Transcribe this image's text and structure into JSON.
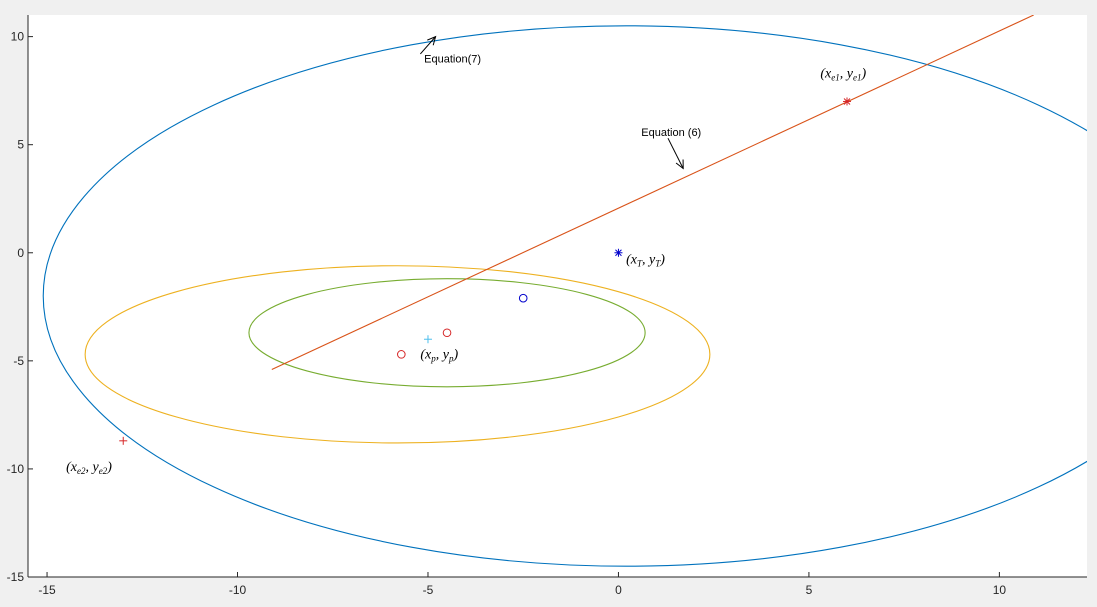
{
  "chart_data": {
    "type": "line",
    "xlim": [
      -15.5,
      12.3
    ],
    "ylim": [
      -15,
      11
    ],
    "x_ticks": [
      -15,
      -10,
      -5,
      0,
      5,
      10
    ],
    "y_ticks": [
      10,
      5,
      0,
      -5,
      -10,
      -15
    ],
    "grid": false,
    "colors": {
      "big_ellipse": "#0072BD",
      "line": "#D95319",
      "yellow_ellipse": "#EDB120",
      "green_ellipse": "#77AC30",
      "red_marker": "#D62728",
      "blue_marker": "#0000CC",
      "cyan_marker": "#4DBEEE"
    },
    "ellipses": [
      {
        "name": "big",
        "cx": 0.2,
        "cy": -2.0,
        "rx": 15.3,
        "ry": 12.5,
        "color_key": "big_ellipse"
      },
      {
        "name": "yellow",
        "cx": -5.8,
        "cy": -4.7,
        "rx": 8.2,
        "ry": 4.1,
        "color_key": "yellow_ellipse"
      },
      {
        "name": "green",
        "cx": -4.5,
        "cy": -3.7,
        "rx": 5.2,
        "ry": 2.5,
        "color_key": "green_ellipse"
      }
    ],
    "line": {
      "x": [
        -9.1,
        10.9
      ],
      "y": [
        -5.4,
        11.0
      ],
      "color_key": "line"
    },
    "markers": [
      {
        "name": "xe1",
        "x": 6.0,
        "y": 7.0,
        "symbol": "star",
        "color_key": "red_marker"
      },
      {
        "name": "xe2",
        "x": -13.0,
        "y": -8.7,
        "symbol": "plus",
        "color_key": "red_marker"
      },
      {
        "name": "xT",
        "x": 0.0,
        "y": 0.0,
        "symbol": "star",
        "color_key": "blue_marker"
      },
      {
        "name": "xp",
        "x": -5.0,
        "y": -4.0,
        "symbol": "plus",
        "color_key": "cyan_marker"
      },
      {
        "name": "circle-blue",
        "x": -2.5,
        "y": -2.1,
        "symbol": "circle",
        "color_key": "blue_marker"
      },
      {
        "name": "circle-red-1",
        "x": -4.5,
        "y": -3.7,
        "symbol": "circle",
        "color_key": "red_marker"
      },
      {
        "name": "circle-red-2",
        "x": -5.7,
        "y": -4.7,
        "symbol": "circle",
        "color_key": "red_marker"
      }
    ],
    "math_labels": [
      {
        "name": "label-xe1",
        "x": 5.3,
        "y": 8.1,
        "main": "(x",
        "s1": "e1",
        "mid": ", y",
        "s2": "e1",
        "end": ")"
      },
      {
        "name": "label-xt",
        "x": 0.2,
        "y": -0.5,
        "main": "(x",
        "s1": "T",
        "mid": ", y",
        "s2": "T",
        "end": ")"
      },
      {
        "name": "label-xp",
        "x": -5.2,
        "y": -4.9,
        "main": "(x",
        "s1": "p",
        "mid": ", y",
        "s2": "p",
        "end": ")"
      },
      {
        "name": "label-xe2",
        "x": -14.5,
        "y": -10.1,
        "main": "(x",
        "s1": "e2",
        "mid": ", y",
        "s2": "e2",
        "end": ")"
      }
    ],
    "annotations": [
      {
        "name": "equation-7",
        "text": "Equation(7)",
        "arrow_x": [
          -4.8,
          -5.2
        ],
        "arrow_y": [
          10.0,
          9.2
        ],
        "text_x": -5.1,
        "text_y": 8.8
      },
      {
        "name": "equation-6",
        "text": "Equation (6)",
        "arrow_x": [
          1.7,
          1.3
        ],
        "arrow_y": [
          3.9,
          5.3
        ],
        "text_x": 0.6,
        "text_y": 5.4
      }
    ]
  }
}
